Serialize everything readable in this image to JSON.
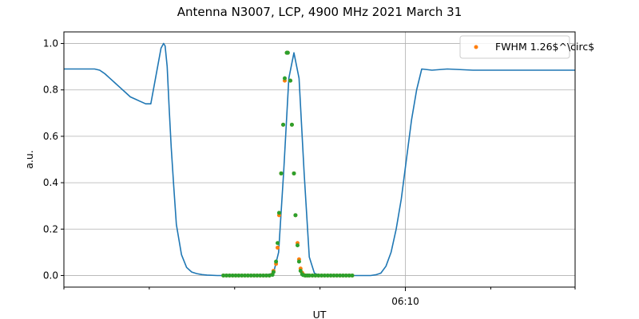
{
  "chart_data": {
    "type": "line",
    "title": "Antenna N3007, LCP, 4900 MHz 2021 March 31",
    "xlabel": "UT",
    "ylabel": "a.u.",
    "xlim": [
      0,
      100
    ],
    "ylim": [
      -0.05,
      1.05
    ],
    "yticks": [
      0.0,
      0.2,
      0.4,
      0.6,
      0.8,
      1.0
    ],
    "ytick_labels": [
      "0.0",
      "0.2",
      "0.4",
      "0.6",
      "0.8",
      "1.0"
    ],
    "xticks_major": [
      {
        "x": 66.8,
        "label": "06:10"
      }
    ],
    "xticks_minor": [
      0,
      16.7,
      33.4,
      50.1,
      83.5,
      100
    ],
    "grid": true,
    "legend": {
      "placement": "top-right",
      "entries": [
        {
          "label": "FWHM 1.26$^\\circ$",
          "color": "#ff7f0e"
        }
      ]
    },
    "colors": {
      "line": "#1f77b4",
      "fit": "#ff7f0e",
      "beam": "#2ca02c",
      "grid": "#b0b0b0"
    },
    "series": [
      {
        "kind": "line",
        "color": "#1f77b4",
        "x": [
          0,
          2,
          4,
          6,
          7,
          8,
          9,
          10,
          11,
          12,
          13,
          14,
          15,
          16,
          17,
          18,
          19,
          19.5,
          19.8,
          20.2,
          20.6,
          21,
          21.5,
          22,
          23,
          24,
          25,
          26,
          27,
          28,
          30,
          33,
          36,
          39,
          41,
          42,
          43,
          44,
          45,
          46,
          47,
          48,
          49,
          50,
          51,
          55,
          58,
          60,
          61,
          62,
          63,
          64,
          65,
          66,
          67,
          68,
          69,
          70,
          72,
          75,
          80,
          85,
          90,
          95,
          100
        ],
        "y": [
          0.89,
          0.89,
          0.89,
          0.89,
          0.885,
          0.87,
          0.85,
          0.83,
          0.81,
          0.79,
          0.77,
          0.76,
          0.75,
          0.74,
          0.74,
          0.86,
          0.98,
          1.0,
          0.99,
          0.9,
          0.72,
          0.55,
          0.38,
          0.22,
          0.09,
          0.035,
          0.015,
          0.008,
          0.004,
          0.002,
          0.0,
          0.0,
          0.0,
          0.0,
          0.01,
          0.1,
          0.45,
          0.85,
          0.96,
          0.85,
          0.44,
          0.08,
          0.01,
          0.0,
          0.0,
          0.0,
          0.0,
          0.0,
          0.003,
          0.01,
          0.04,
          0.1,
          0.2,
          0.33,
          0.5,
          0.67,
          0.8,
          0.89,
          0.885,
          0.89,
          0.885,
          0.885,
          0.885,
          0.885,
          0.885
        ]
      },
      {
        "kind": "points",
        "color": "#ff7f0e",
        "x": [
          31.2,
          31.8,
          32.4,
          33.0,
          33.6,
          34.2,
          34.8,
          35.4,
          36.0,
          36.6,
          37.2,
          37.8,
          38.4,
          39.0,
          39.6,
          40.2,
          40.8,
          41.0,
          41.5,
          41.8,
          42.1,
          42.5,
          42.9,
          43.2,
          43.6,
          43.8,
          44.3,
          44.6,
          45.0,
          45.3,
          45.7,
          46.0,
          46.3,
          46.6,
          46.8,
          47.2,
          47.6,
          48.0,
          48.6,
          49.2,
          49.8,
          50.4,
          51.0,
          51.6,
          52.2,
          52.8,
          53.4,
          54.0,
          54.6,
          55.2,
          55.8,
          56.4
        ],
        "y": [
          0,
          0,
          0,
          0,
          0,
          0,
          0,
          0,
          0,
          0,
          0,
          0,
          0,
          0,
          0,
          0,
          0.005,
          0.02,
          0.05,
          0.12,
          0.26,
          0.44,
          0.65,
          0.84,
          0.96,
          0.96,
          0.84,
          0.65,
          0.44,
          0.26,
          0.14,
          0.07,
          0.03,
          0.012,
          0.005,
          0,
          0,
          0,
          0,
          0,
          0,
          0,
          0,
          0,
          0,
          0,
          0,
          0,
          0,
          0,
          0,
          0
        ]
      },
      {
        "kind": "points",
        "color": "#2ca02c",
        "x": [
          31.2,
          31.8,
          32.4,
          33.0,
          33.6,
          34.2,
          34.8,
          35.4,
          36.0,
          36.6,
          37.2,
          37.8,
          38.4,
          39.0,
          39.6,
          40.2,
          40.8,
          41.0,
          41.5,
          41.8,
          42.1,
          42.5,
          42.9,
          43.2,
          43.6,
          43.8,
          44.3,
          44.6,
          45.0,
          45.3,
          45.7,
          46.0,
          46.3,
          46.6,
          46.8,
          47.2,
          47.6,
          48.0,
          48.6,
          49.2,
          49.8,
          50.4,
          51.0,
          51.6,
          52.2,
          52.8,
          53.4,
          54.0,
          54.6,
          55.2,
          55.8,
          56.4
        ],
        "y": [
          0,
          0,
          0,
          0,
          0,
          0,
          0,
          0,
          0,
          0,
          0,
          0,
          0,
          0,
          0,
          0,
          0.003,
          0.015,
          0.06,
          0.14,
          0.27,
          0.44,
          0.65,
          0.85,
          0.96,
          0.96,
          0.84,
          0.65,
          0.44,
          0.26,
          0.13,
          0.06,
          0.02,
          0.006,
          0.002,
          0,
          0,
          0,
          0,
          0,
          0,
          0,
          0,
          0,
          0,
          0,
          0,
          0,
          0,
          0,
          0,
          0
        ]
      }
    ]
  }
}
